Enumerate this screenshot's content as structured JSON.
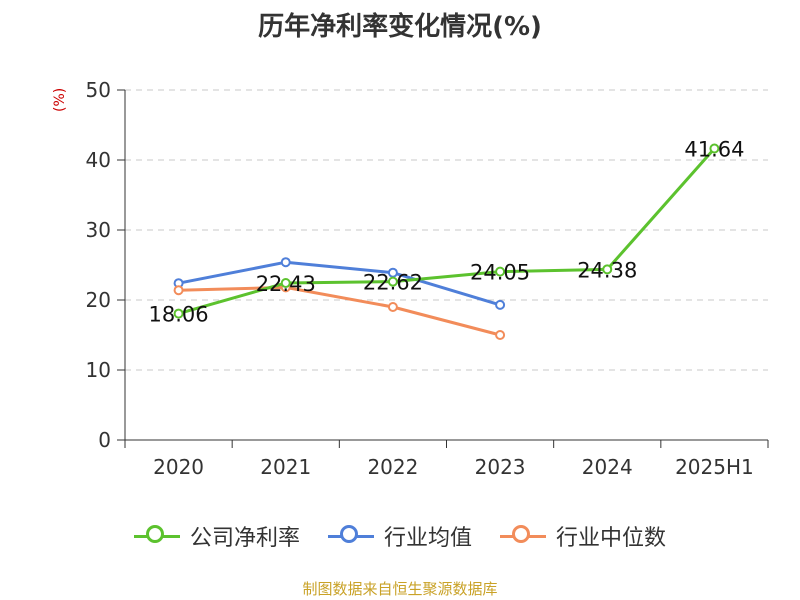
{
  "title": "历年净利率变化情况(%)",
  "unit_label": "(%)",
  "source": "制图数据来自恒生聚源数据库",
  "chart_data": {
    "type": "line",
    "categories": [
      "2020",
      "2021",
      "2022",
      "2023",
      "2024",
      "2025H1"
    ],
    "ylim": [
      0,
      50
    ],
    "yticks": [
      0,
      10,
      20,
      30,
      40,
      50
    ],
    "grid": true,
    "legend_position": "bottom",
    "series": [
      {
        "name": "公司净利率",
        "color": "#5cc22e",
        "values": [
          18.06,
          22.43,
          22.62,
          24.05,
          24.38,
          41.64
        ],
        "labels": [
          "18.06",
          "22.43",
          "22.62",
          "24.05",
          "24.38",
          "41.64"
        ]
      },
      {
        "name": "行业均值",
        "color": "#4f7fd9",
        "values": [
          22.4,
          25.4,
          23.9,
          19.3,
          null,
          null
        ]
      },
      {
        "name": "行业中位数",
        "color": "#f28c5a",
        "values": [
          21.4,
          21.8,
          19.0,
          15.0,
          null,
          null
        ]
      }
    ]
  }
}
